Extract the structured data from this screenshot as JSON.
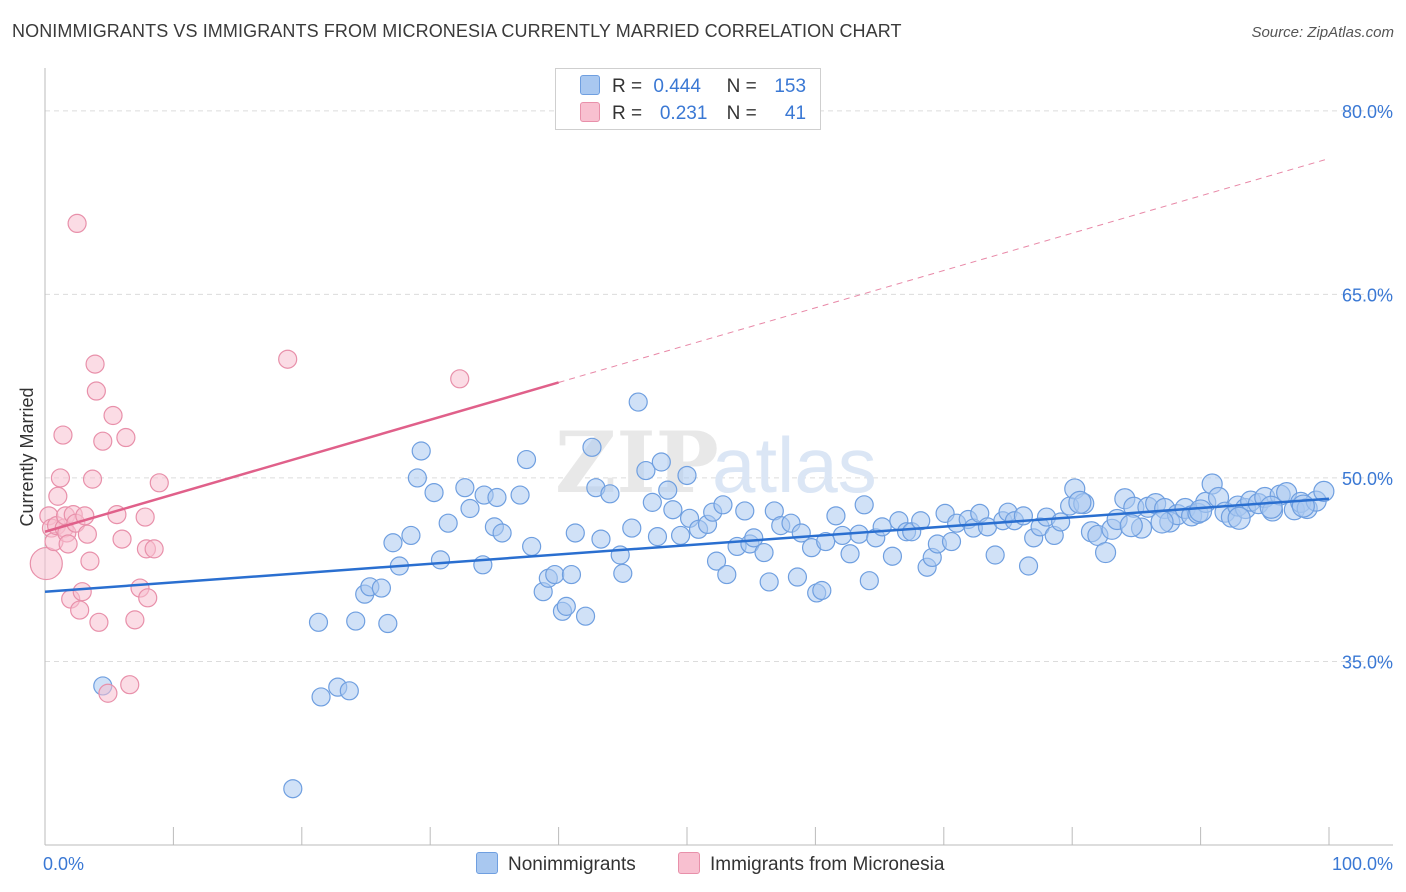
{
  "title": "NONIMMIGRANTS VS IMMIGRANTS FROM MICRONESIA CURRENTLY MARRIED CORRELATION CHART",
  "source": "Source: ZipAtlas.com",
  "watermark": {
    "zip": "ZIP",
    "atlas": "atlas"
  },
  "legend": {
    "rows": [
      {
        "r_label": "R =",
        "r_value": "0.444",
        "n_label": "N =",
        "n_value": "153",
        "color": "#a9c8f0",
        "border": "#6f9fe0"
      },
      {
        "r_label": "R =",
        "r_value": "0.231",
        "n_label": "N =",
        "n_value": "41",
        "color": "#f8c0d0",
        "border": "#e890aa"
      }
    ]
  },
  "bottom_legend": {
    "items": [
      {
        "label": "Nonimmigrants",
        "color": "#a9c8f0",
        "border": "#6f9fe0"
      },
      {
        "label": "Immigrants from Micronesia",
        "color": "#f8c0d0",
        "border": "#e890aa"
      }
    ]
  },
  "chart_data": {
    "type": "scatter",
    "xlabel": "",
    "ylabel": "Currently Married",
    "xlim": [
      0,
      100
    ],
    "ylim": [
      20,
      83.5
    ],
    "x_tick_labels": [
      "0.0%",
      "100.0%"
    ],
    "y_ticks": [
      35,
      50,
      65,
      80
    ],
    "y_tick_labels": [
      "35.0%",
      "50.0%",
      "65.0%",
      "80.0%"
    ],
    "grid": true,
    "series": [
      {
        "name": "Nonimmigrants",
        "color": "#a9c8f0",
        "stroke": "#6f9fe0",
        "trend": {
          "x0": 0,
          "y0": 40.7,
          "x1": 100,
          "y1": 48.3,
          "color": "#2a6fd0"
        },
        "points": [
          [
            4.5,
            33.0,
            9
          ],
          [
            19.3,
            24.6,
            9
          ],
          [
            21.3,
            38.2,
            9
          ],
          [
            21.5,
            32.1,
            9
          ],
          [
            22.8,
            32.9,
            9
          ],
          [
            23.7,
            32.6,
            9
          ],
          [
            24.2,
            38.3,
            9
          ],
          [
            24.9,
            40.5,
            9
          ],
          [
            25.3,
            41.1,
            9
          ],
          [
            26.2,
            41.0,
            9
          ],
          [
            26.7,
            38.1,
            9
          ],
          [
            27.1,
            44.7,
            9
          ],
          [
            27.6,
            42.8,
            9
          ],
          [
            28.5,
            45.3,
            9
          ],
          [
            29.0,
            50.0,
            9
          ],
          [
            29.3,
            52.2,
            9
          ],
          [
            30.3,
            48.8,
            9
          ],
          [
            30.8,
            43.3,
            9
          ],
          [
            31.4,
            46.3,
            9
          ],
          [
            32.7,
            49.2,
            9
          ],
          [
            33.1,
            47.5,
            9
          ],
          [
            34.1,
            42.9,
            9
          ],
          [
            34.2,
            48.6,
            9
          ],
          [
            35.0,
            46.0,
            9
          ],
          [
            35.2,
            48.4,
            9
          ],
          [
            35.6,
            45.5,
            9
          ],
          [
            37.0,
            48.6,
            9
          ],
          [
            37.5,
            51.5,
            9
          ],
          [
            37.9,
            44.4,
            9
          ],
          [
            38.8,
            40.7,
            9
          ],
          [
            39.2,
            41.8,
            9
          ],
          [
            39.7,
            42.1,
            9
          ],
          [
            40.3,
            39.1,
            9
          ],
          [
            40.6,
            39.5,
            9
          ],
          [
            41.0,
            42.1,
            9
          ],
          [
            41.3,
            45.5,
            9
          ],
          [
            42.1,
            38.7,
            9
          ],
          [
            42.6,
            52.5,
            9
          ],
          [
            42.9,
            49.2,
            9
          ],
          [
            43.3,
            45.0,
            9
          ],
          [
            44.0,
            48.7,
            9
          ],
          [
            44.8,
            43.7,
            9
          ],
          [
            45.0,
            42.2,
            9
          ],
          [
            45.7,
            45.9,
            9
          ],
          [
            46.2,
            56.2,
            9
          ],
          [
            46.8,
            50.6,
            9
          ],
          [
            47.3,
            48.0,
            9
          ],
          [
            47.7,
            45.2,
            9
          ],
          [
            48.0,
            51.3,
            9
          ],
          [
            48.5,
            49.0,
            9
          ],
          [
            48.9,
            47.4,
            9
          ],
          [
            49.5,
            45.3,
            9
          ],
          [
            50.0,
            50.2,
            9
          ],
          [
            50.2,
            46.7,
            9
          ],
          [
            50.9,
            45.8,
            9
          ],
          [
            51.6,
            46.2,
            9
          ],
          [
            52.0,
            47.2,
            9
          ],
          [
            52.3,
            43.2,
            9
          ],
          [
            52.8,
            47.8,
            9
          ],
          [
            53.1,
            42.1,
            9
          ],
          [
            53.9,
            44.4,
            9
          ],
          [
            54.5,
            47.3,
            9
          ],
          [
            54.9,
            44.6,
            9
          ],
          [
            55.2,
            45.1,
            9
          ],
          [
            56.0,
            43.9,
            9
          ],
          [
            56.4,
            41.5,
            9
          ],
          [
            56.8,
            47.3,
            9
          ],
          [
            57.3,
            46.1,
            9
          ],
          [
            58.1,
            46.3,
            9
          ],
          [
            58.6,
            41.9,
            9
          ],
          [
            58.9,
            45.5,
            9
          ],
          [
            59.7,
            44.3,
            9
          ],
          [
            60.1,
            40.6,
            9
          ],
          [
            60.5,
            40.8,
            9
          ],
          [
            60.8,
            44.8,
            9
          ],
          [
            61.6,
            46.9,
            9
          ],
          [
            62.1,
            45.3,
            9
          ],
          [
            62.7,
            43.8,
            9
          ],
          [
            63.4,
            45.4,
            9
          ],
          [
            63.8,
            47.8,
            9
          ],
          [
            64.2,
            41.6,
            9
          ],
          [
            64.7,
            45.1,
            9
          ],
          [
            65.2,
            46.0,
            9
          ],
          [
            66.0,
            43.6,
            9
          ],
          [
            66.5,
            46.5,
            9
          ],
          [
            67.1,
            45.6,
            9
          ],
          [
            67.5,
            45.6,
            9
          ],
          [
            68.2,
            46.5,
            9
          ],
          [
            68.7,
            42.7,
            9
          ],
          [
            69.1,
            43.5,
            9
          ],
          [
            69.5,
            44.6,
            9
          ],
          [
            70.1,
            47.1,
            9
          ],
          [
            70.6,
            44.8,
            9
          ],
          [
            71.0,
            46.3,
            9
          ],
          [
            71.9,
            46.6,
            9
          ],
          [
            72.3,
            45.9,
            9
          ],
          [
            72.8,
            47.1,
            9
          ],
          [
            73.4,
            46.0,
            9
          ],
          [
            74.0,
            43.7,
            9
          ],
          [
            74.6,
            46.5,
            9
          ],
          [
            75.0,
            47.2,
            9
          ],
          [
            75.5,
            46.5,
            9
          ],
          [
            76.2,
            46.9,
            9
          ],
          [
            76.6,
            42.8,
            9
          ],
          [
            77.0,
            45.1,
            9
          ],
          [
            77.5,
            46.0,
            9
          ],
          [
            78.0,
            46.8,
            9
          ],
          [
            78.6,
            45.3,
            9
          ],
          [
            79.1,
            46.4,
            9
          ],
          [
            79.8,
            47.7,
            9
          ],
          [
            80.2,
            49.1,
            10
          ],
          [
            80.9,
            47.9,
            10
          ],
          [
            81.5,
            45.6,
            10
          ],
          [
            82.0,
            45.3,
            10
          ],
          [
            82.6,
            43.9,
            10
          ],
          [
            83.1,
            45.8,
            10
          ],
          [
            83.5,
            46.6,
            10
          ],
          [
            84.1,
            48.3,
            10
          ],
          [
            84.8,
            47.6,
            10
          ],
          [
            85.4,
            45.9,
            10
          ],
          [
            85.9,
            47.6,
            10
          ],
          [
            86.5,
            47.9,
            10
          ],
          [
            87.2,
            47.5,
            10
          ],
          [
            87.6,
            46.4,
            10
          ],
          [
            88.2,
            47.0,
            10
          ],
          [
            88.8,
            47.5,
            10
          ],
          [
            89.3,
            46.9,
            10
          ],
          [
            89.8,
            47.1,
            10
          ],
          [
            90.4,
            48.0,
            10
          ],
          [
            90.9,
            49.5,
            10
          ],
          [
            91.4,
            48.4,
            10
          ],
          [
            91.9,
            47.2,
            10
          ],
          [
            92.4,
            46.8,
            10
          ],
          [
            92.9,
            47.7,
            10
          ],
          [
            93.5,
            47.5,
            10
          ],
          [
            93.9,
            48.1,
            10
          ],
          [
            94.5,
            47.9,
            10
          ],
          [
            95.0,
            48.4,
            10
          ],
          [
            95.6,
            47.3,
            10
          ],
          [
            96.2,
            48.6,
            10
          ],
          [
            96.7,
            48.8,
            10
          ],
          [
            97.3,
            47.4,
            10
          ],
          [
            97.8,
            48.0,
            10
          ],
          [
            98.3,
            47.5,
            10
          ],
          [
            99.0,
            48.1,
            10
          ],
          [
            99.6,
            48.9,
            10
          ],
          [
            90.0,
            47.3,
            11
          ],
          [
            93.0,
            46.7,
            11
          ],
          [
            87.0,
            46.4,
            11
          ],
          [
            95.5,
            47.6,
            11
          ],
          [
            80.6,
            48.0,
            11
          ],
          [
            84.6,
            46.1,
            11
          ],
          [
            98.0,
            47.7,
            11
          ]
        ]
      },
      {
        "name": "Immigrants from Micronesia",
        "color": "#f8c0d0",
        "stroke": "#e890aa",
        "trend": {
          "x0": 0,
          "y0": 45.6,
          "x1": 40,
          "y1": 57.8,
          "dash_x1": 100,
          "dash_y1": 76.1,
          "color": "#e0608a"
        },
        "points": [
          [
            0.1,
            43.0,
            16
          ],
          [
            0.3,
            46.9,
            9
          ],
          [
            0.5,
            45.9,
            9
          ],
          [
            0.7,
            44.8,
            9
          ],
          [
            0.9,
            46.1,
            9
          ],
          [
            1.0,
            48.5,
            9
          ],
          [
            1.2,
            50.0,
            9
          ],
          [
            1.4,
            53.5,
            9
          ],
          [
            1.5,
            45.9,
            9
          ],
          [
            1.6,
            46.9,
            9
          ],
          [
            1.7,
            45.5,
            9
          ],
          [
            1.8,
            44.6,
            9
          ],
          [
            2.0,
            40.1,
            9
          ],
          [
            2.2,
            47.0,
            9
          ],
          [
            2.4,
            46.3,
            9
          ],
          [
            2.5,
            70.8,
            9
          ],
          [
            2.7,
            39.2,
            9
          ],
          [
            2.9,
            40.7,
            9
          ],
          [
            3.1,
            46.9,
            9
          ],
          [
            3.3,
            45.4,
            9
          ],
          [
            3.5,
            43.2,
            9
          ],
          [
            3.7,
            49.9,
            9
          ],
          [
            3.9,
            59.3,
            9
          ],
          [
            4.0,
            57.1,
            9
          ],
          [
            4.2,
            38.2,
            9
          ],
          [
            4.5,
            53.0,
            9
          ],
          [
            4.9,
            32.4,
            9
          ],
          [
            5.3,
            55.1,
            9
          ],
          [
            5.6,
            47.0,
            9
          ],
          [
            6.0,
            45.0,
            9
          ],
          [
            6.3,
            53.3,
            9
          ],
          [
            6.6,
            33.1,
            9
          ],
          [
            7.0,
            38.4,
            9
          ],
          [
            7.4,
            41.0,
            9
          ],
          [
            7.8,
            46.8,
            9
          ],
          [
            7.9,
            44.2,
            9
          ],
          [
            8.0,
            40.2,
            9
          ],
          [
            8.5,
            44.2,
            9
          ],
          [
            8.9,
            49.6,
            9
          ],
          [
            18.9,
            59.7,
            9
          ],
          [
            32.3,
            58.1,
            9
          ]
        ]
      }
    ]
  }
}
